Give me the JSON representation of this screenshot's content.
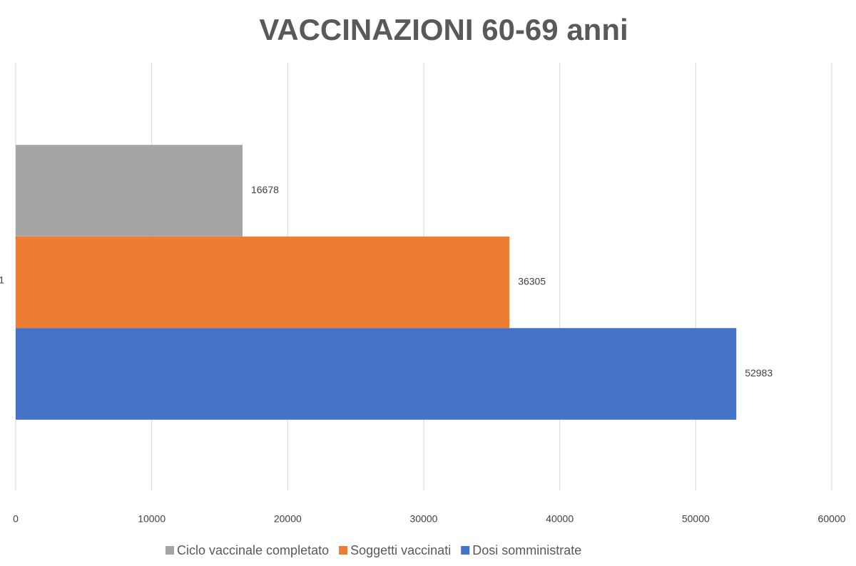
{
  "chart_data": {
    "type": "hbar",
    "title": "VACCINAZIONI 60-69 anni",
    "categories": [
      "1"
    ],
    "series": [
      {
        "name": "Ciclo vaccinale completato",
        "color": "#a5a5a5",
        "values": [
          16678
        ]
      },
      {
        "name": "Soggetti vaccinati",
        "color": "#ed7d31",
        "values": [
          36305
        ]
      },
      {
        "name": "Dosi somministrate",
        "color": "#4472c4",
        "values": [
          52983
        ]
      }
    ],
    "xlim": [
      0,
      60000
    ],
    "xticks": [
      0,
      10000,
      20000,
      30000,
      40000,
      50000,
      60000
    ],
    "grid": true,
    "legend": "bottom"
  }
}
